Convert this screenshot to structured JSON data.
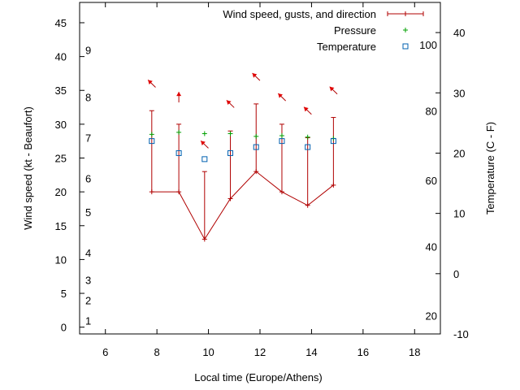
{
  "chart_data": {
    "type": "line",
    "xlabel": "Local time (Europe/Athens)",
    "ylabel": "Wind speed (kt - Beaufort)",
    "y2label": "Temperature (C - F)",
    "xlim": [
      5,
      19
    ],
    "ylim": [
      -1,
      48
    ],
    "y2lim": [
      -10,
      45
    ],
    "x_ticks": [
      "6",
      "8",
      "10",
      "12",
      "14",
      "16",
      "18"
    ],
    "y_ticks": [
      "0",
      "5",
      "10",
      "15",
      "20",
      "25",
      "30",
      "35",
      "40",
      "45"
    ],
    "y2_ticks": [
      "-10",
      "0",
      "10",
      "20",
      "30",
      "40"
    ],
    "beaufort_labels": [
      {
        "text": "1",
        "y": 1
      },
      {
        "text": "2",
        "y": 4
      },
      {
        "text": "3",
        "y": 7
      },
      {
        "text": "4",
        "y": 11
      },
      {
        "text": "5",
        "y": 17
      },
      {
        "text": "6",
        "y": 22
      },
      {
        "text": "7",
        "y": 28
      },
      {
        "text": "8",
        "y": 34
      },
      {
        "text": "9",
        "y": 41
      }
    ],
    "fahrenheit_labels": [
      {
        "text": "20",
        "y": -7
      },
      {
        "text": "40",
        "y": 4.5
      },
      {
        "text": "60",
        "y": 15.5
      },
      {
        "text": "80",
        "y": 27
      },
      {
        "text": "100",
        "y": 38
      }
    ],
    "legend": {
      "placement": "top-right",
      "entries": [
        "Wind speed, gusts, and direction",
        "Pressure",
        "Temperature"
      ]
    },
    "series": [
      {
        "name": "Wind speed, gusts, and direction",
        "color": "#b00000",
        "x": [
          7.8,
          8.85,
          9.85,
          10.85,
          11.85,
          12.85,
          13.85,
          14.85
        ],
        "wind": [
          20,
          20,
          13,
          19,
          23,
          20,
          18,
          21
        ],
        "gust": [
          32,
          30,
          23,
          29,
          33,
          30,
          28,
          31
        ],
        "arrows": [
          {
            "y": 36,
            "dir": "nw"
          },
          {
            "y": 34,
            "dir": "n"
          },
          {
            "y": 27,
            "dir": "nw"
          },
          {
            "y": 33,
            "dir": "nw"
          },
          {
            "y": 37,
            "dir": "nw"
          },
          {
            "y": 34,
            "dir": "nw"
          },
          {
            "y": 32,
            "dir": "nw"
          },
          {
            "y": 35,
            "dir": "nw"
          }
        ]
      },
      {
        "name": "Pressure",
        "color": "#00a000",
        "x": [
          7.8,
          8.85,
          9.85,
          10.85,
          11.85,
          12.85,
          13.85,
          14.85
        ],
        "values": [
          28.5,
          28.8,
          28.6,
          28.6,
          28.2,
          28.3,
          28.1,
          27.9
        ]
      },
      {
        "name": "Temperature",
        "color": "#0060b0",
        "x": [
          7.8,
          8.85,
          9.85,
          10.85,
          11.85,
          12.85,
          13.85,
          14.85
        ],
        "values": [
          22,
          20,
          19,
          20,
          21,
          22,
          21,
          22
        ]
      }
    ]
  }
}
